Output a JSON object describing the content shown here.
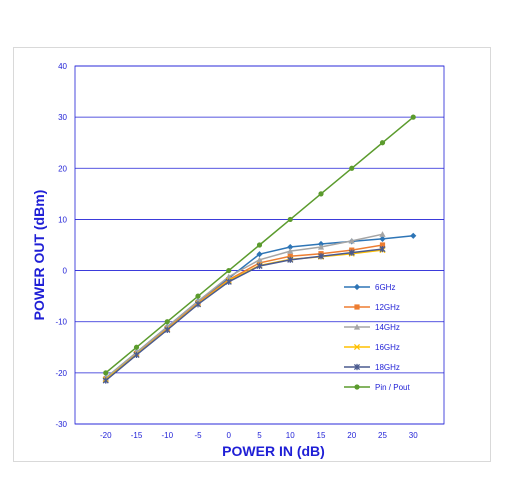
{
  "chart_data": {
    "type": "line",
    "title": "",
    "xlabel": "POWER IN (dB)",
    "ylabel": "POWER OUT (dBm)",
    "x": [
      -20,
      -15,
      -10,
      -5,
      0,
      5,
      10,
      15,
      20,
      25,
      30
    ],
    "xlim": [
      -25,
      35
    ],
    "ylim": [
      -30,
      40
    ],
    "yticks": [
      -30,
      -20,
      -10,
      0,
      10,
      20,
      30,
      40
    ],
    "grid": "horizontal",
    "legend_position": "right",
    "series": [
      {
        "name": "6GHz",
        "color": "#2e75b6",
        "marker": "diamond",
        "values": [
          -21,
          -16,
          -11,
          -6,
          -1.5,
          3.2,
          4.6,
          5.2,
          5.7,
          6.2,
          6.8
        ]
      },
      {
        "name": "12GHz",
        "color": "#ed7d31",
        "marker": "square",
        "values": [
          -21.2,
          -16.2,
          -11.3,
          -6.3,
          -1.8,
          1.5,
          2.8,
          3.3,
          4.0,
          5.0,
          null
        ]
      },
      {
        "name": "14GHz",
        "color": "#a5a5a5",
        "marker": "triangle",
        "values": [
          -21,
          -16,
          -11,
          -6,
          -1.2,
          2.1,
          3.8,
          4.6,
          5.8,
          7.1,
          null
        ]
      },
      {
        "name": "16GHz",
        "color": "#ffc000",
        "marker": "x",
        "values": [
          -21.3,
          -16.4,
          -11.5,
          -6.5,
          -2.0,
          1.0,
          2.2,
          2.7,
          3.3,
          4.0,
          null
        ]
      },
      {
        "name": "18GHz",
        "color": "#4a5a8f",
        "marker": "star",
        "values": [
          -21.5,
          -16.5,
          -11.6,
          -6.6,
          -2.2,
          0.9,
          2.1,
          2.8,
          3.5,
          4.2,
          null
        ]
      },
      {
        "name": "Pin / Pout",
        "color": "#5b9b2d",
        "marker": "circle",
        "values": [
          -20,
          -15,
          -10,
          -5,
          0,
          5,
          10,
          15,
          20,
          25,
          30
        ]
      }
    ]
  }
}
